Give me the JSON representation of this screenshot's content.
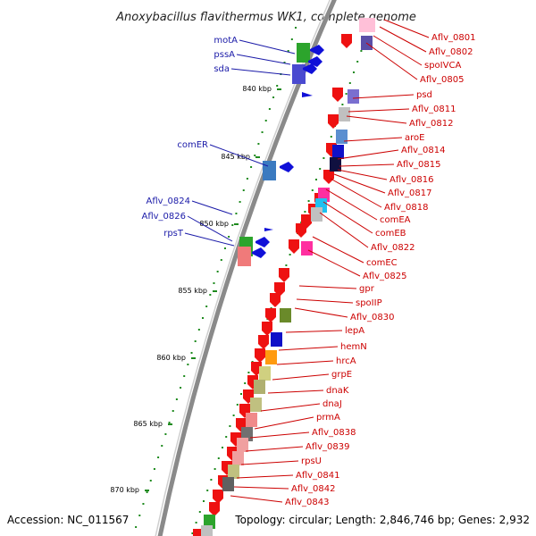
{
  "title": "Anoxybacillus flavithermus WK1, complete genome",
  "footer": {
    "accession": "Accession: NC_011567",
    "topology": "Topology: circular; Length: 2,846,746 bp; Genes: 2,932"
  },
  "ticks": [
    "840 kbp",
    "845 kbp",
    "850 kbp",
    "855 kbp",
    "860 kbp",
    "865 kbp",
    "870 kbp"
  ],
  "genes_left": [
    "motA",
    "pssA",
    "sda",
    "comER",
    "Aflv_0824",
    "Aflv_0826",
    "rpsT"
  ],
  "genes_right": [
    "Aflv_0801",
    "Aflv_0802",
    "spoIVCA",
    "Aflv_0805",
    "psd",
    "Aflv_0811",
    "Aflv_0812",
    "aroE",
    "Aflv_0814",
    "Aflv_0815",
    "Aflv_0816",
    "Aflv_0817",
    "Aflv_0818",
    "comEA",
    "comEB",
    "Aflv_0822",
    "comEC",
    "Aflv_0825",
    "gpr",
    "spoIIP",
    "Aflv_0830",
    "lepA",
    "hemN",
    "hrcA",
    "grpE",
    "dnaK",
    "dnaJ",
    "prmA",
    "Aflv_0838",
    "Aflv_0839",
    "rpsU",
    "Aflv_0841",
    "Aflv_0842",
    "Aflv_0843"
  ],
  "colors": {
    "cds": "#ee1111",
    "left_label": "#1a1aa8",
    "right_label": "#cc0000",
    "backbone": "#8a8a8a",
    "gc_dots": "#1e8a1e"
  }
}
